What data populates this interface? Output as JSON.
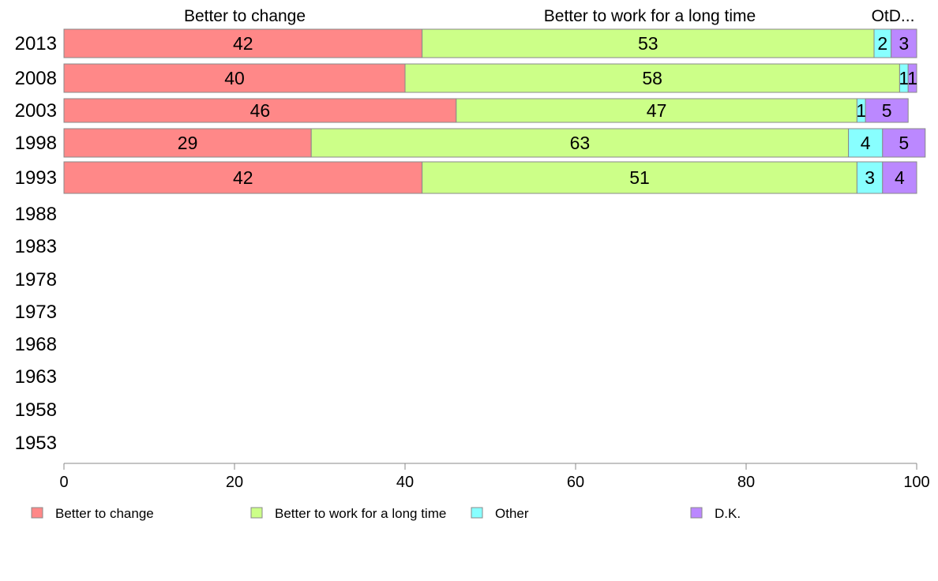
{
  "chart_data": {
    "type": "bar",
    "orientation": "horizontal",
    "stacked": true,
    "categories": [
      "2013",
      "2008",
      "2003",
      "1998",
      "1993",
      "1988",
      "1983",
      "1978",
      "1973",
      "1968",
      "1963",
      "1958",
      "1953"
    ],
    "series": [
      {
        "name": "Better to change",
        "color": "#ff8888",
        "values": [
          42,
          40,
          46,
          29,
          42,
          null,
          null,
          null,
          null,
          null,
          null,
          null,
          null
        ]
      },
      {
        "name": "Better to work for a long time",
        "color": "#ccff88",
        "values": [
          53,
          58,
          47,
          63,
          51,
          null,
          null,
          null,
          null,
          null,
          null,
          null,
          null
        ]
      },
      {
        "name": "Other",
        "color": "#88ffff",
        "values": [
          2,
          1,
          1,
          4,
          3,
          null,
          null,
          null,
          null,
          null,
          null,
          null,
          null
        ]
      },
      {
        "name": "D.K.",
        "color": "#bb88ff",
        "values": [
          3,
          1,
          5,
          5,
          4,
          null,
          null,
          null,
          null,
          null,
          null,
          null,
          null
        ]
      }
    ],
    "column_headers": [
      "Better to change",
      "Better to work for a long time",
      "OtD..."
    ],
    "xlim": [
      0,
      100
    ],
    "xticks": [
      0,
      20,
      40,
      60,
      80,
      100
    ],
    "grid": false,
    "legend_position": "bottom"
  }
}
